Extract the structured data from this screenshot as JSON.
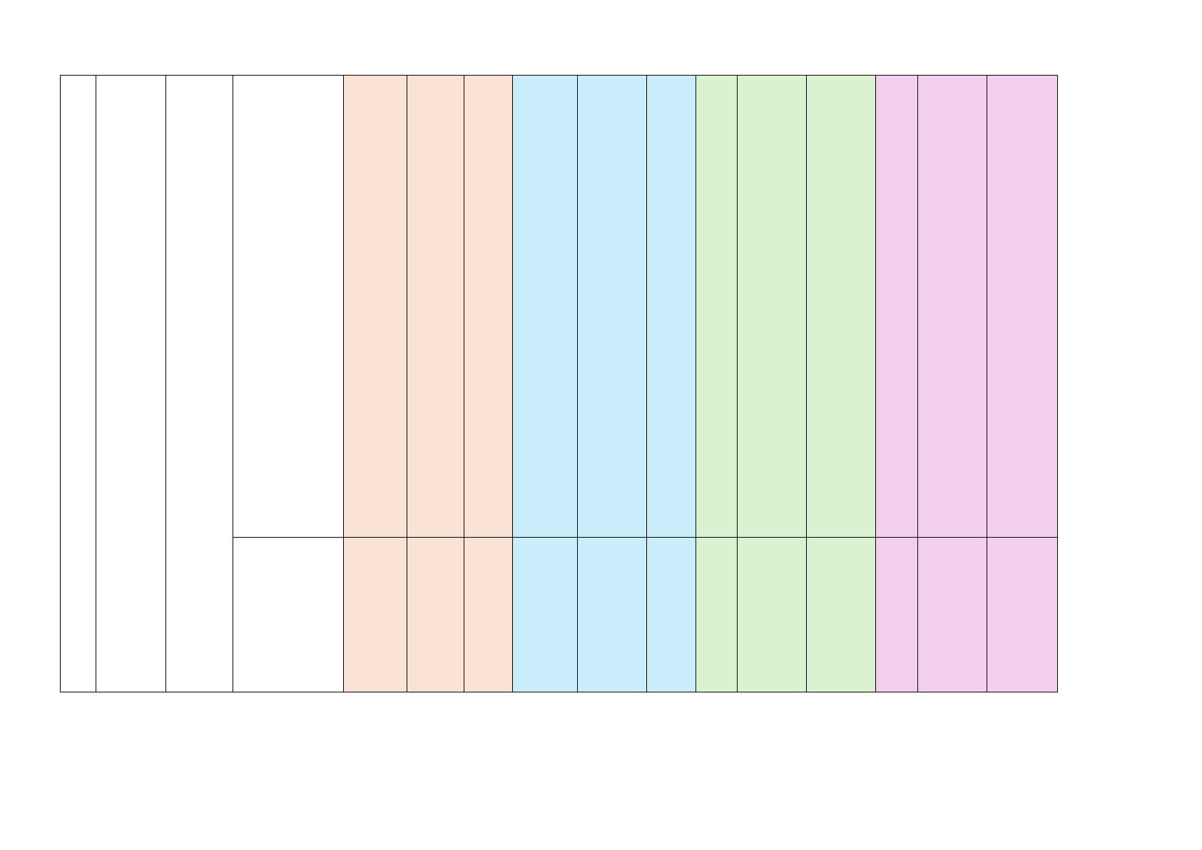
{
  "colors": {
    "plain": "#FFFFFF",
    "group1": "#FAE2D5",
    "group2": "#CAEDFB",
    "group3": "#DAF2D0",
    "group4": "#F2CEEF"
  },
  "columns": [
    {
      "fill": "plain",
      "span_rows": true
    },
    {
      "fill": "plain",
      "span_rows": true
    },
    {
      "fill": "plain",
      "span_rows": true
    },
    {
      "fill": "plain"
    },
    {
      "fill": "group1"
    },
    {
      "fill": "group1"
    },
    {
      "fill": "group1"
    },
    {
      "fill": "group2"
    },
    {
      "fill": "group2"
    },
    {
      "fill": "group2"
    },
    {
      "fill": "group3"
    },
    {
      "fill": "group3"
    },
    {
      "fill": "group3"
    },
    {
      "fill": "group4"
    },
    {
      "fill": "group4"
    },
    {
      "fill": "group4"
    }
  ],
  "rows": [
    {
      "cells": [
        "",
        "",
        "",
        "",
        "",
        "",
        "",
        "",
        "",
        "",
        "",
        "",
        "",
        "",
        "",
        ""
      ]
    },
    {
      "cells": [
        "",
        "",
        "",
        "",
        "",
        "",
        "",
        "",
        "",
        "",
        "",
        "",
        "",
        ""
      ]
    }
  ]
}
